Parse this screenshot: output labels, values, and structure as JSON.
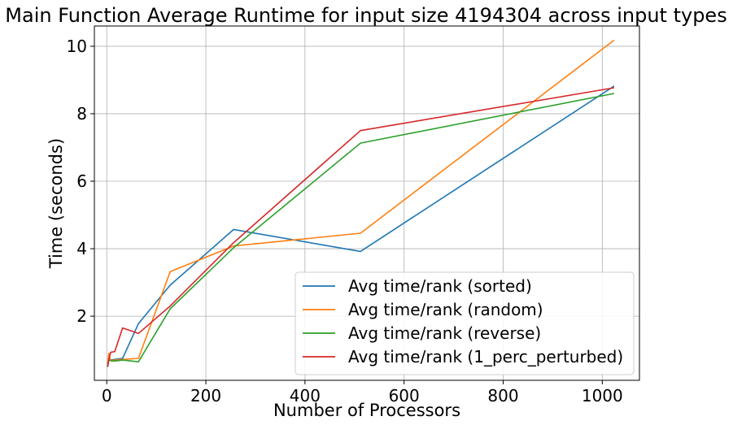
{
  "chart_data": {
    "type": "line",
    "title": "Main Function Average Runtime for input size 4194304 across input types",
    "xlabel": "Number of Processors",
    "ylabel": "Time (seconds)",
    "xlim": [
      -25,
      1075
    ],
    "ylim": [
      0.1,
      10.6
    ],
    "xticks": [
      0,
      200,
      400,
      600,
      800,
      1000
    ],
    "yticks": [
      2,
      4,
      6,
      8,
      10
    ],
    "xtick_labels": [
      "0",
      "200",
      "400",
      "600",
      "800",
      "1000"
    ],
    "ytick_labels": [
      "2",
      "4",
      "6",
      "8",
      "10"
    ],
    "grid": true,
    "legend_position": "lower-right",
    "series": [
      {
        "name": "Avg time/rank (sorted)",
        "color": "#1f77b4",
        "x": [
          2,
          4,
          8,
          16,
          32,
          64,
          128,
          256,
          512,
          1024
        ],
        "y": [
          0.52,
          0.72,
          0.7,
          0.72,
          0.75,
          1.78,
          2.92,
          4.57,
          3.92,
          8.82
        ]
      },
      {
        "name": "Avg time/rank (random)",
        "color": "#ff7f0e",
        "x": [
          2,
          4,
          8,
          16,
          32,
          64,
          128,
          256,
          512,
          1024
        ],
        "y": [
          0.58,
          0.9,
          0.68,
          0.7,
          0.72,
          0.75,
          3.32,
          4.08,
          4.46,
          10.18
        ]
      },
      {
        "name": "Avg time/rank (reverse)",
        "color": "#2ca02c",
        "x": [
          2,
          4,
          8,
          16,
          32,
          64,
          128,
          256,
          512,
          1024
        ],
        "y": [
          0.5,
          0.7,
          0.68,
          0.67,
          0.7,
          0.65,
          2.22,
          4.03,
          7.13,
          8.6
        ]
      },
      {
        "name": "Avg time/rank (1_perc_perturbed)",
        "color": "#d62728",
        "x": [
          2,
          4,
          8,
          16,
          32,
          64,
          128,
          256,
          512,
          1024
        ],
        "y": [
          0.5,
          0.72,
          0.93,
          0.95,
          1.65,
          1.49,
          2.3,
          4.18,
          7.5,
          8.77
        ]
      }
    ]
  }
}
